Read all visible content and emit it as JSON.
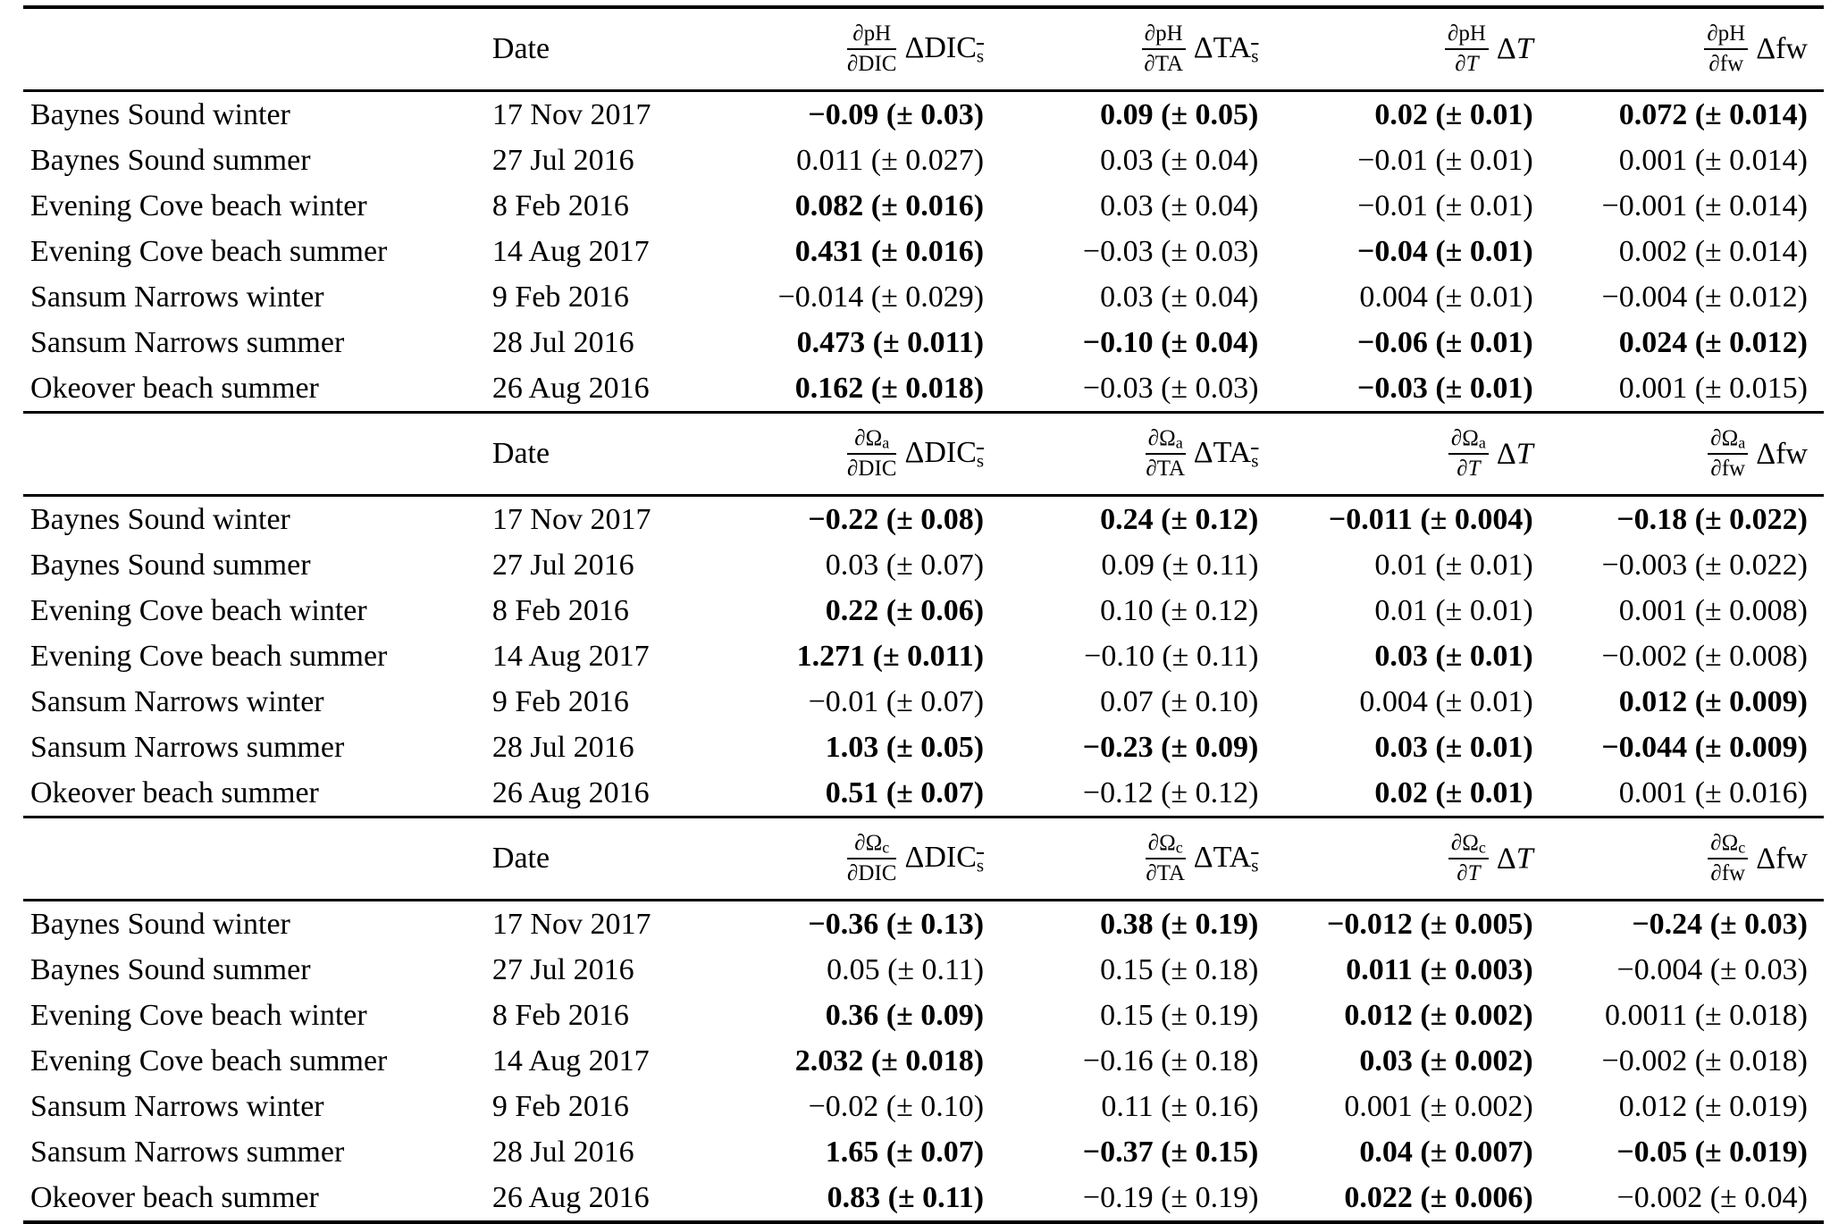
{
  "tables": [
    {
      "header": {
        "site": "",
        "date": "Date",
        "cols": [
          {
            "num_pre": "∂",
            "num_var": "pH",
            "num_sub": "",
            "den_pre": "∂",
            "den_var": "DIC",
            "den_it": false,
            "t_pre": "Δ",
            "t_var": "DIC",
            "t_it": false,
            "t_sub": "s"
          },
          {
            "num_pre": "∂",
            "num_var": "pH",
            "num_sub": "",
            "den_pre": "∂",
            "den_var": "TA",
            "den_it": false,
            "t_pre": "Δ",
            "t_var": "TA",
            "t_it": false,
            "t_sub": "s"
          },
          {
            "num_pre": "∂",
            "num_var": "pH",
            "num_sub": "",
            "den_pre": "∂",
            "den_var": "T",
            "den_it": true,
            "t_pre": "Δ",
            "t_var": "T",
            "t_it": true,
            "t_sub": ""
          },
          {
            "num_pre": "∂",
            "num_var": "pH",
            "num_sub": "",
            "den_pre": "∂",
            "den_var": "fw",
            "den_it": false,
            "t_pre": "Δ",
            "t_var": "fw",
            "t_it": false,
            "t_sub": ""
          }
        ]
      },
      "rows": [
        {
          "site": "Baynes Sound winter",
          "date": "17 Nov 2017",
          "cells": [
            {
              "v": "−0.09 (± 0.03)",
              "b": true
            },
            {
              "v": "0.09 (± 0.05)",
              "b": true
            },
            {
              "v": "0.02 (± 0.01)",
              "b": true
            },
            {
              "v": "0.072 (± 0.014)",
              "b": true
            }
          ]
        },
        {
          "site": "Baynes Sound summer",
          "date": "27 Jul 2016",
          "cells": [
            {
              "v": "0.011 (± 0.027)",
              "b": false
            },
            {
              "v": "0.03 (± 0.04)",
              "b": false
            },
            {
              "v": "−0.01 (± 0.01)",
              "b": false
            },
            {
              "v": "0.001 (± 0.014)",
              "b": false
            }
          ]
        },
        {
          "site": "Evening Cove beach winter",
          "date": "8 Feb 2016",
          "cells": [
            {
              "v": "0.082 (± 0.016)",
              "b": true
            },
            {
              "v": "0.03 (± 0.04)",
              "b": false
            },
            {
              "v": "−0.01 (± 0.01)",
              "b": false
            },
            {
              "v": "−0.001 (± 0.014)",
              "b": false
            }
          ]
        },
        {
          "site": "Evening Cove beach summer",
          "date": "14 Aug 2017",
          "cells": [
            {
              "v": "0.431 (± 0.016)",
              "b": true
            },
            {
              "v": "−0.03 (± 0.03)",
              "b": false
            },
            {
              "v": "−0.04 (± 0.01)",
              "b": true
            },
            {
              "v": "0.002 (± 0.014)",
              "b": false
            }
          ]
        },
        {
          "site": "Sansum Narrows winter",
          "date": "9 Feb 2016",
          "cells": [
            {
              "v": "−0.014 (± 0.029)",
              "b": false
            },
            {
              "v": "0.03 (± 0.04)",
              "b": false
            },
            {
              "v": "0.004 (± 0.01)",
              "b": false
            },
            {
              "v": "−0.004 (± 0.012)",
              "b": false
            }
          ]
        },
        {
          "site": "Sansum Narrows summer",
          "date": "28 Jul 2016",
          "cells": [
            {
              "v": "0.473 (± 0.011)",
              "b": true
            },
            {
              "v": "−0.10 (± 0.04)",
              "b": true
            },
            {
              "v": "−0.06 (± 0.01)",
              "b": true
            },
            {
              "v": "0.024 (± 0.012)",
              "b": true
            }
          ]
        },
        {
          "site": "Okeover beach summer",
          "date": "26 Aug 2016",
          "cells": [
            {
              "v": "0.162 (± 0.018)",
              "b": true
            },
            {
              "v": "−0.03 (± 0.03)",
              "b": false
            },
            {
              "v": "−0.03 (± 0.01)",
              "b": true
            },
            {
              "v": "0.001 (± 0.015)",
              "b": false
            }
          ]
        }
      ]
    },
    {
      "header": {
        "site": "",
        "date": "Date",
        "cols": [
          {
            "num_pre": "∂",
            "num_var": "Ω",
            "num_sub": "a",
            "den_pre": "∂",
            "den_var": "DIC",
            "den_it": false,
            "t_pre": "Δ",
            "t_var": "DIC",
            "t_it": false,
            "t_sub": "s"
          },
          {
            "num_pre": "∂",
            "num_var": "Ω",
            "num_sub": "a",
            "den_pre": "∂",
            "den_var": "TA",
            "den_it": false,
            "t_pre": "Δ",
            "t_var": "TA",
            "t_it": false,
            "t_sub": "s"
          },
          {
            "num_pre": "∂",
            "num_var": "Ω",
            "num_sub": "a",
            "den_pre": "∂",
            "den_var": "T",
            "den_it": true,
            "t_pre": "Δ",
            "t_var": "T",
            "t_it": true,
            "t_sub": ""
          },
          {
            "num_pre": "∂",
            "num_var": "Ω",
            "num_sub": "a",
            "den_pre": "∂",
            "den_var": "fw",
            "den_it": false,
            "t_pre": "Δ",
            "t_var": "fw",
            "t_it": false,
            "t_sub": ""
          }
        ]
      },
      "rows": [
        {
          "site": "Baynes Sound winter",
          "date": "17 Nov 2017",
          "cells": [
            {
              "v": "−0.22 (± 0.08)",
              "b": true
            },
            {
              "v": "0.24 (± 0.12)",
              "b": true
            },
            {
              "v": "−0.011 (± 0.004)",
              "b": true
            },
            {
              "v": "−0.18 (± 0.022)",
              "b": true
            }
          ]
        },
        {
          "site": "Baynes Sound summer",
          "date": "27 Jul 2016",
          "cells": [
            {
              "v": "0.03 (± 0.07)",
              "b": false
            },
            {
              "v": "0.09 (± 0.11)",
              "b": false
            },
            {
              "v": "0.01 (± 0.01)",
              "b": false
            },
            {
              "v": "−0.003 (± 0.022)",
              "b": false
            }
          ]
        },
        {
          "site": "Evening Cove beach winter",
          "date": "8 Feb 2016",
          "cells": [
            {
              "v": "0.22 (± 0.06)",
              "b": true
            },
            {
              "v": "0.10 (± 0.12)",
              "b": false
            },
            {
              "v": "0.01 (± 0.01)",
              "b": false
            },
            {
              "v": "0.001 (± 0.008)",
              "b": false
            }
          ]
        },
        {
          "site": "Evening Cove beach summer",
          "date": "14 Aug 2017",
          "cells": [
            {
              "v": "1.271 (± 0.011)",
              "b": true
            },
            {
              "v": "−0.10 (± 0.11)",
              "b": false
            },
            {
              "v": "0.03 (± 0.01)",
              "b": true
            },
            {
              "v": "−0.002 (± 0.008)",
              "b": false
            }
          ]
        },
        {
          "site": "Sansum Narrows winter",
          "date": "9 Feb 2016",
          "cells": [
            {
              "v": "−0.01 (± 0.07)",
              "b": false
            },
            {
              "v": "0.07 (± 0.10)",
              "b": false
            },
            {
              "v": "0.004 (± 0.01)",
              "b": false
            },
            {
              "v": "0.012 (± 0.009)",
              "b": true
            }
          ]
        },
        {
          "site": "Sansum Narrows summer",
          "date": "28 Jul 2016",
          "cells": [
            {
              "v": "1.03 (± 0.05)",
              "b": true
            },
            {
              "v": "−0.23 (± 0.09)",
              "b": true
            },
            {
              "v": "0.03 (± 0.01)",
              "b": true
            },
            {
              "v": "−0.044 (± 0.009)",
              "b": true
            }
          ]
        },
        {
          "site": "Okeover beach summer",
          "date": "26 Aug 2016",
          "cells": [
            {
              "v": "0.51 (± 0.07)",
              "b": true
            },
            {
              "v": "−0.12 (± 0.12)",
              "b": false
            },
            {
              "v": "0.02 (± 0.01)",
              "b": true
            },
            {
              "v": "0.001 (± 0.016)",
              "b": false
            }
          ]
        }
      ]
    },
    {
      "header": {
        "site": "",
        "date": "Date",
        "cols": [
          {
            "num_pre": "∂",
            "num_var": "Ω",
            "num_sub": "c",
            "den_pre": "∂",
            "den_var": "DIC",
            "den_it": false,
            "t_pre": "Δ",
            "t_var": "DIC",
            "t_it": false,
            "t_sub": "s"
          },
          {
            "num_pre": "∂",
            "num_var": "Ω",
            "num_sub": "c",
            "den_pre": "∂",
            "den_var": "TA",
            "den_it": false,
            "t_pre": "Δ",
            "t_var": "TA",
            "t_it": false,
            "t_sub": "s"
          },
          {
            "num_pre": "∂",
            "num_var": "Ω",
            "num_sub": "c",
            "den_pre": "∂",
            "den_var": "T",
            "den_it": true,
            "t_pre": "Δ",
            "t_var": "T",
            "t_it": true,
            "t_sub": ""
          },
          {
            "num_pre": "∂",
            "num_var": "Ω",
            "num_sub": "c",
            "den_pre": "∂",
            "den_var": "fw",
            "den_it": false,
            "t_pre": "Δ",
            "t_var": "fw",
            "t_it": false,
            "t_sub": ""
          }
        ]
      },
      "rows": [
        {
          "site": "Baynes Sound winter",
          "date": "17 Nov 2017",
          "cells": [
            {
              "v": "−0.36 (± 0.13)",
              "b": true
            },
            {
              "v": "0.38 (± 0.19)",
              "b": true
            },
            {
              "v": "−0.012 (± 0.005)",
              "b": true
            },
            {
              "v": "−0.24 (± 0.03)",
              "b": true
            }
          ]
        },
        {
          "site": "Baynes Sound summer",
          "date": "27 Jul 2016",
          "cells": [
            {
              "v": "0.05 (± 0.11)",
              "b": false
            },
            {
              "v": "0.15 (± 0.18)",
              "b": false
            },
            {
              "v": "0.011 (± 0.003)",
              "b": true
            },
            {
              "v": "−0.004 (± 0.03)",
              "b": false
            }
          ]
        },
        {
          "site": "Evening Cove beach winter",
          "date": "8 Feb 2016",
          "cells": [
            {
              "v": "0.36 (± 0.09)",
              "b": true
            },
            {
              "v": "0.15 (± 0.19)",
              "b": false
            },
            {
              "v": "0.012 (± 0.002)",
              "b": true
            },
            {
              "v": "0.0011 (± 0.018)",
              "b": false
            }
          ]
        },
        {
          "site": "Evening Cove beach summer",
          "date": "14 Aug 2017",
          "cells": [
            {
              "v": "2.032 (± 0.018)",
              "b": true
            },
            {
              "v": "−0.16 (± 0.18)",
              "b": false
            },
            {
              "v": "0.03 (± 0.002)",
              "b": true
            },
            {
              "v": "−0.002 (± 0.018)",
              "b": false
            }
          ]
        },
        {
          "site": "Sansum Narrows winter",
          "date": "9 Feb 2016",
          "cells": [
            {
              "v": "−0.02 (± 0.10)",
              "b": false
            },
            {
              "v": "0.11 (± 0.16)",
              "b": false
            },
            {
              "v": "0.001 (± 0.002)",
              "b": false
            },
            {
              "v": "0.012 (± 0.019)",
              "b": false
            }
          ]
        },
        {
          "site": "Sansum Narrows summer",
          "date": "28 Jul 2016",
          "cells": [
            {
              "v": "1.65 (± 0.07)",
              "b": true
            },
            {
              "v": "−0.37 (± 0.15)",
              "b": true
            },
            {
              "v": "0.04 (± 0.007)",
              "b": true
            },
            {
              "v": "−0.05 (± 0.019)",
              "b": true
            }
          ]
        },
        {
          "site": "Okeover beach summer",
          "date": "26 Aug 2016",
          "cells": [
            {
              "v": "0.83 (± 0.11)",
              "b": true
            },
            {
              "v": "−0.19 (± 0.19)",
              "b": false
            },
            {
              "v": "0.022 (± 0.006)",
              "b": true
            },
            {
              "v": "−0.002 (± 0.04)",
              "b": false
            }
          ]
        }
      ]
    }
  ]
}
